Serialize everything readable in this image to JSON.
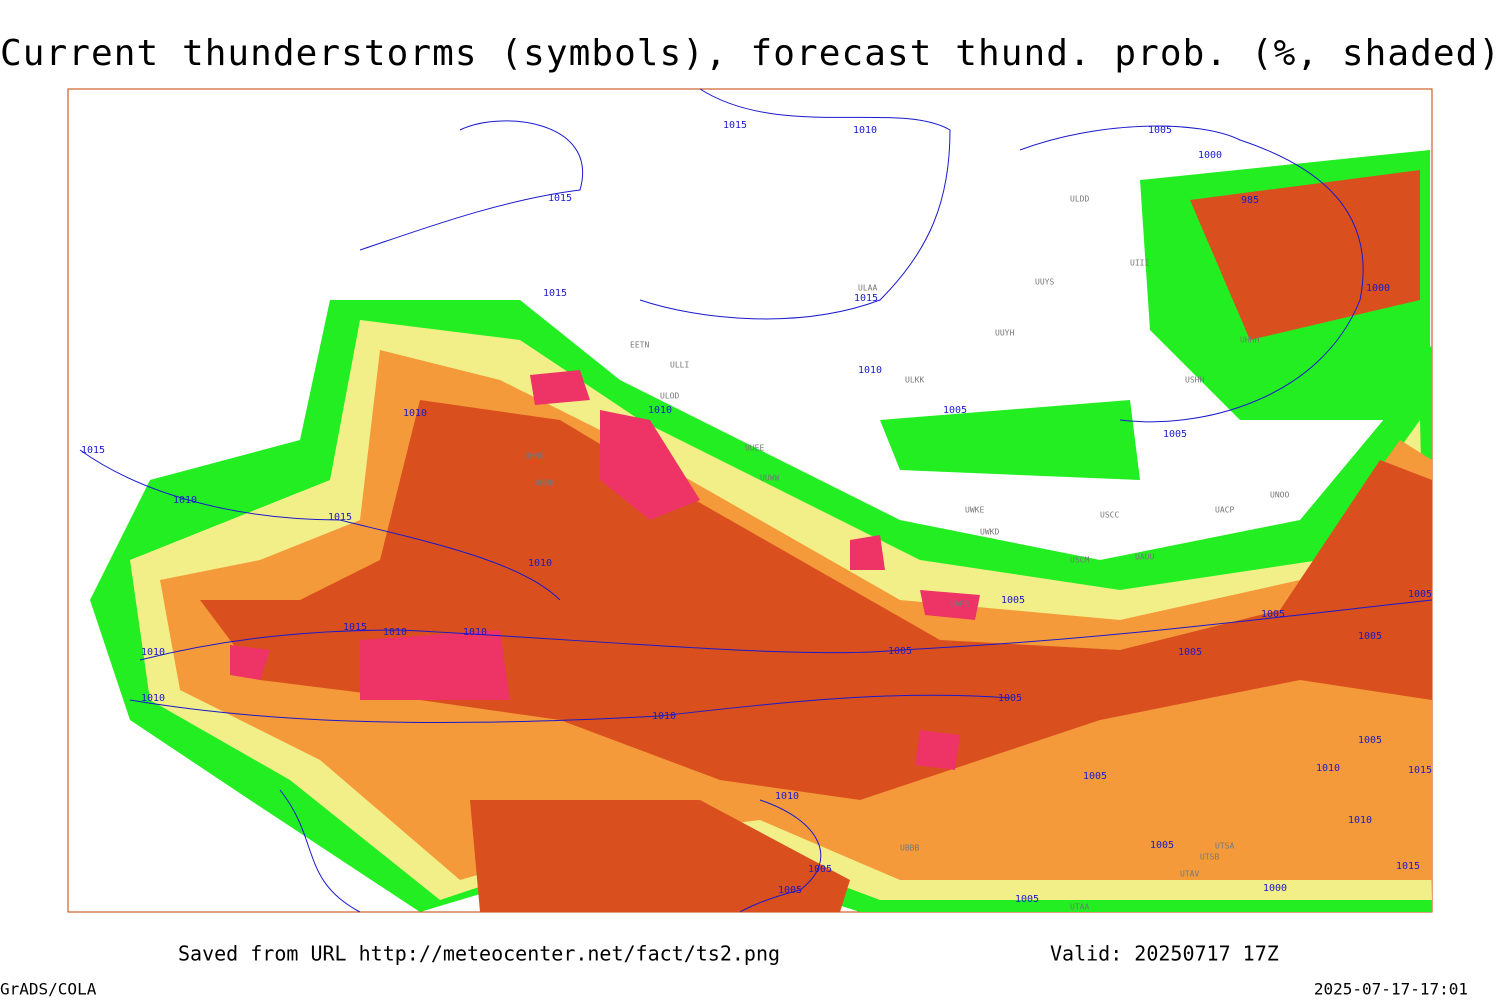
{
  "header": {
    "title": "Current thunderstorms (symbols), forecast thund. prob. (%, shaded)"
  },
  "map": {
    "isobar_labels": [
      "1015",
      "1010",
      "1005",
      "1000",
      "985",
      "1015",
      "1015",
      "1015",
      "1000",
      "1010",
      "1005",
      "1010",
      "1010",
      "1015",
      "1005",
      "1010",
      "1015",
      "1010",
      "1005",
      "1005",
      "1005",
      "1015",
      "1010",
      "1010",
      "1005",
      "1005",
      "1010",
      "1005",
      "1010",
      "1005",
      "1010",
      "1005",
      "1005",
      "1010",
      "1015",
      "1010",
      "1005",
      "1005",
      "1005",
      "1005",
      "1000",
      "1015",
      "1010"
    ],
    "station_labels": [
      "ULDD",
      "ULAA",
      "EETN",
      "ULLI",
      "ULOD",
      "UUYS",
      "UUYH",
      "ULKK",
      "UUEE",
      "UUWW",
      "UMMG",
      "UMBB",
      "UWKE",
      "UWKD",
      "USCC",
      "UACP",
      "UNOO",
      "USCM",
      "UAUU",
      "UARR",
      "UBBB",
      "UTSA",
      "UTSB",
      "UTAV",
      "UTAA",
      "USHH",
      "UHHH",
      "UIII"
    ]
  },
  "footer": {
    "source": "Saved from URL http://meteocenter.net/fact/ts2.png",
    "valid": "Valid: 20250717 17Z",
    "software": "GrADS/COLA",
    "timestamp": "2025-07-17-17:01"
  }
}
